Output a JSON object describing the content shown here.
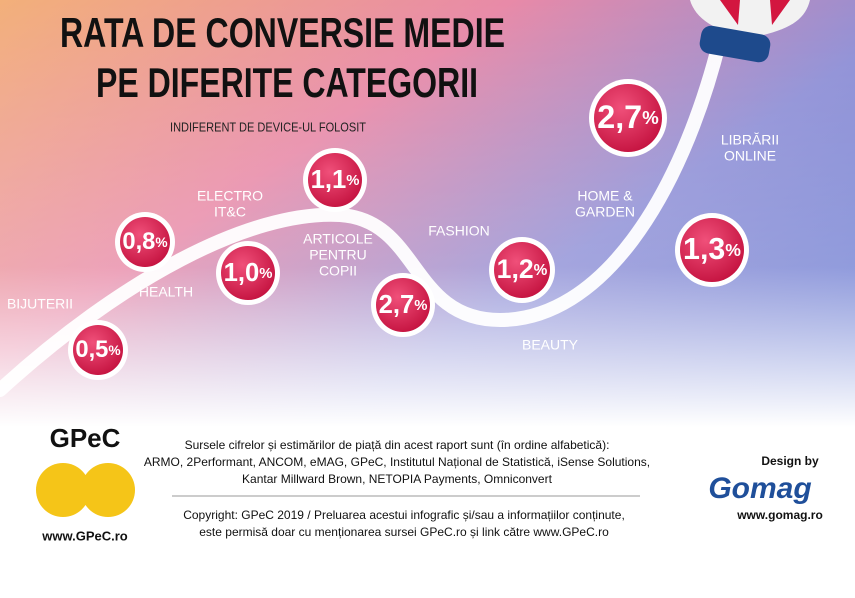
{
  "header": {
    "title": [
      "RATA DE CONVERSIE MEDIE",
      "PE DIFERITE CATEGORII"
    ],
    "subtitle": "INDIFERENT DE DEVICE-UL FOLOSIT"
  },
  "categories": [
    {
      "label": [
        "BIJUTERII"
      ],
      "value": "0,5",
      "unit": "%"
    },
    {
      "label": [
        "HEALTH"
      ],
      "value": "0,8",
      "unit": "%"
    },
    {
      "label": [
        "ELECTRO",
        "IT&C"
      ],
      "value": "1,0",
      "unit": "%"
    },
    {
      "label": [
        "ARTICOLE",
        "PENTRU",
        "COPII"
      ],
      "value": "1,1",
      "unit": "%"
    },
    {
      "label": [
        "FASHION"
      ],
      "value": "2,7",
      "unit": "%"
    },
    {
      "label": [
        "BEAUTY"
      ],
      "value": "1,2",
      "unit": "%"
    },
    {
      "label": [
        "HOME &",
        "GARDEN"
      ],
      "value": "2,7",
      "unit": "%"
    },
    {
      "label": [
        "LIBRĂRII",
        "ONLINE"
      ],
      "value": "1,3",
      "unit": "%"
    }
  ],
  "footer": {
    "logo": "GPeC",
    "logo_url": "www.GPeC.ro",
    "sources": [
      "Sursele cifrelor și estimărilor de piață din acest raport sunt (în ordine alfabetică):",
      "ARMO, 2Performant, ANCOM, eMAG, GPeC, Institutul Național de Statistică, iSense Solutions,",
      "Kantar Millward Brown, NETOPIA Payments, Omniconvert"
    ],
    "copyright": [
      "Copyright: GPeC 2019 / Preluarea acestui infografic și/sau a informațiilor conținute,",
      "este permisă doar cu menționarea sursei GPeC.ro și link către www.GPeC.ro"
    ],
    "design_by": "Design by",
    "designer": "Gomag",
    "designer_url": "www.gomag.ro"
  }
}
